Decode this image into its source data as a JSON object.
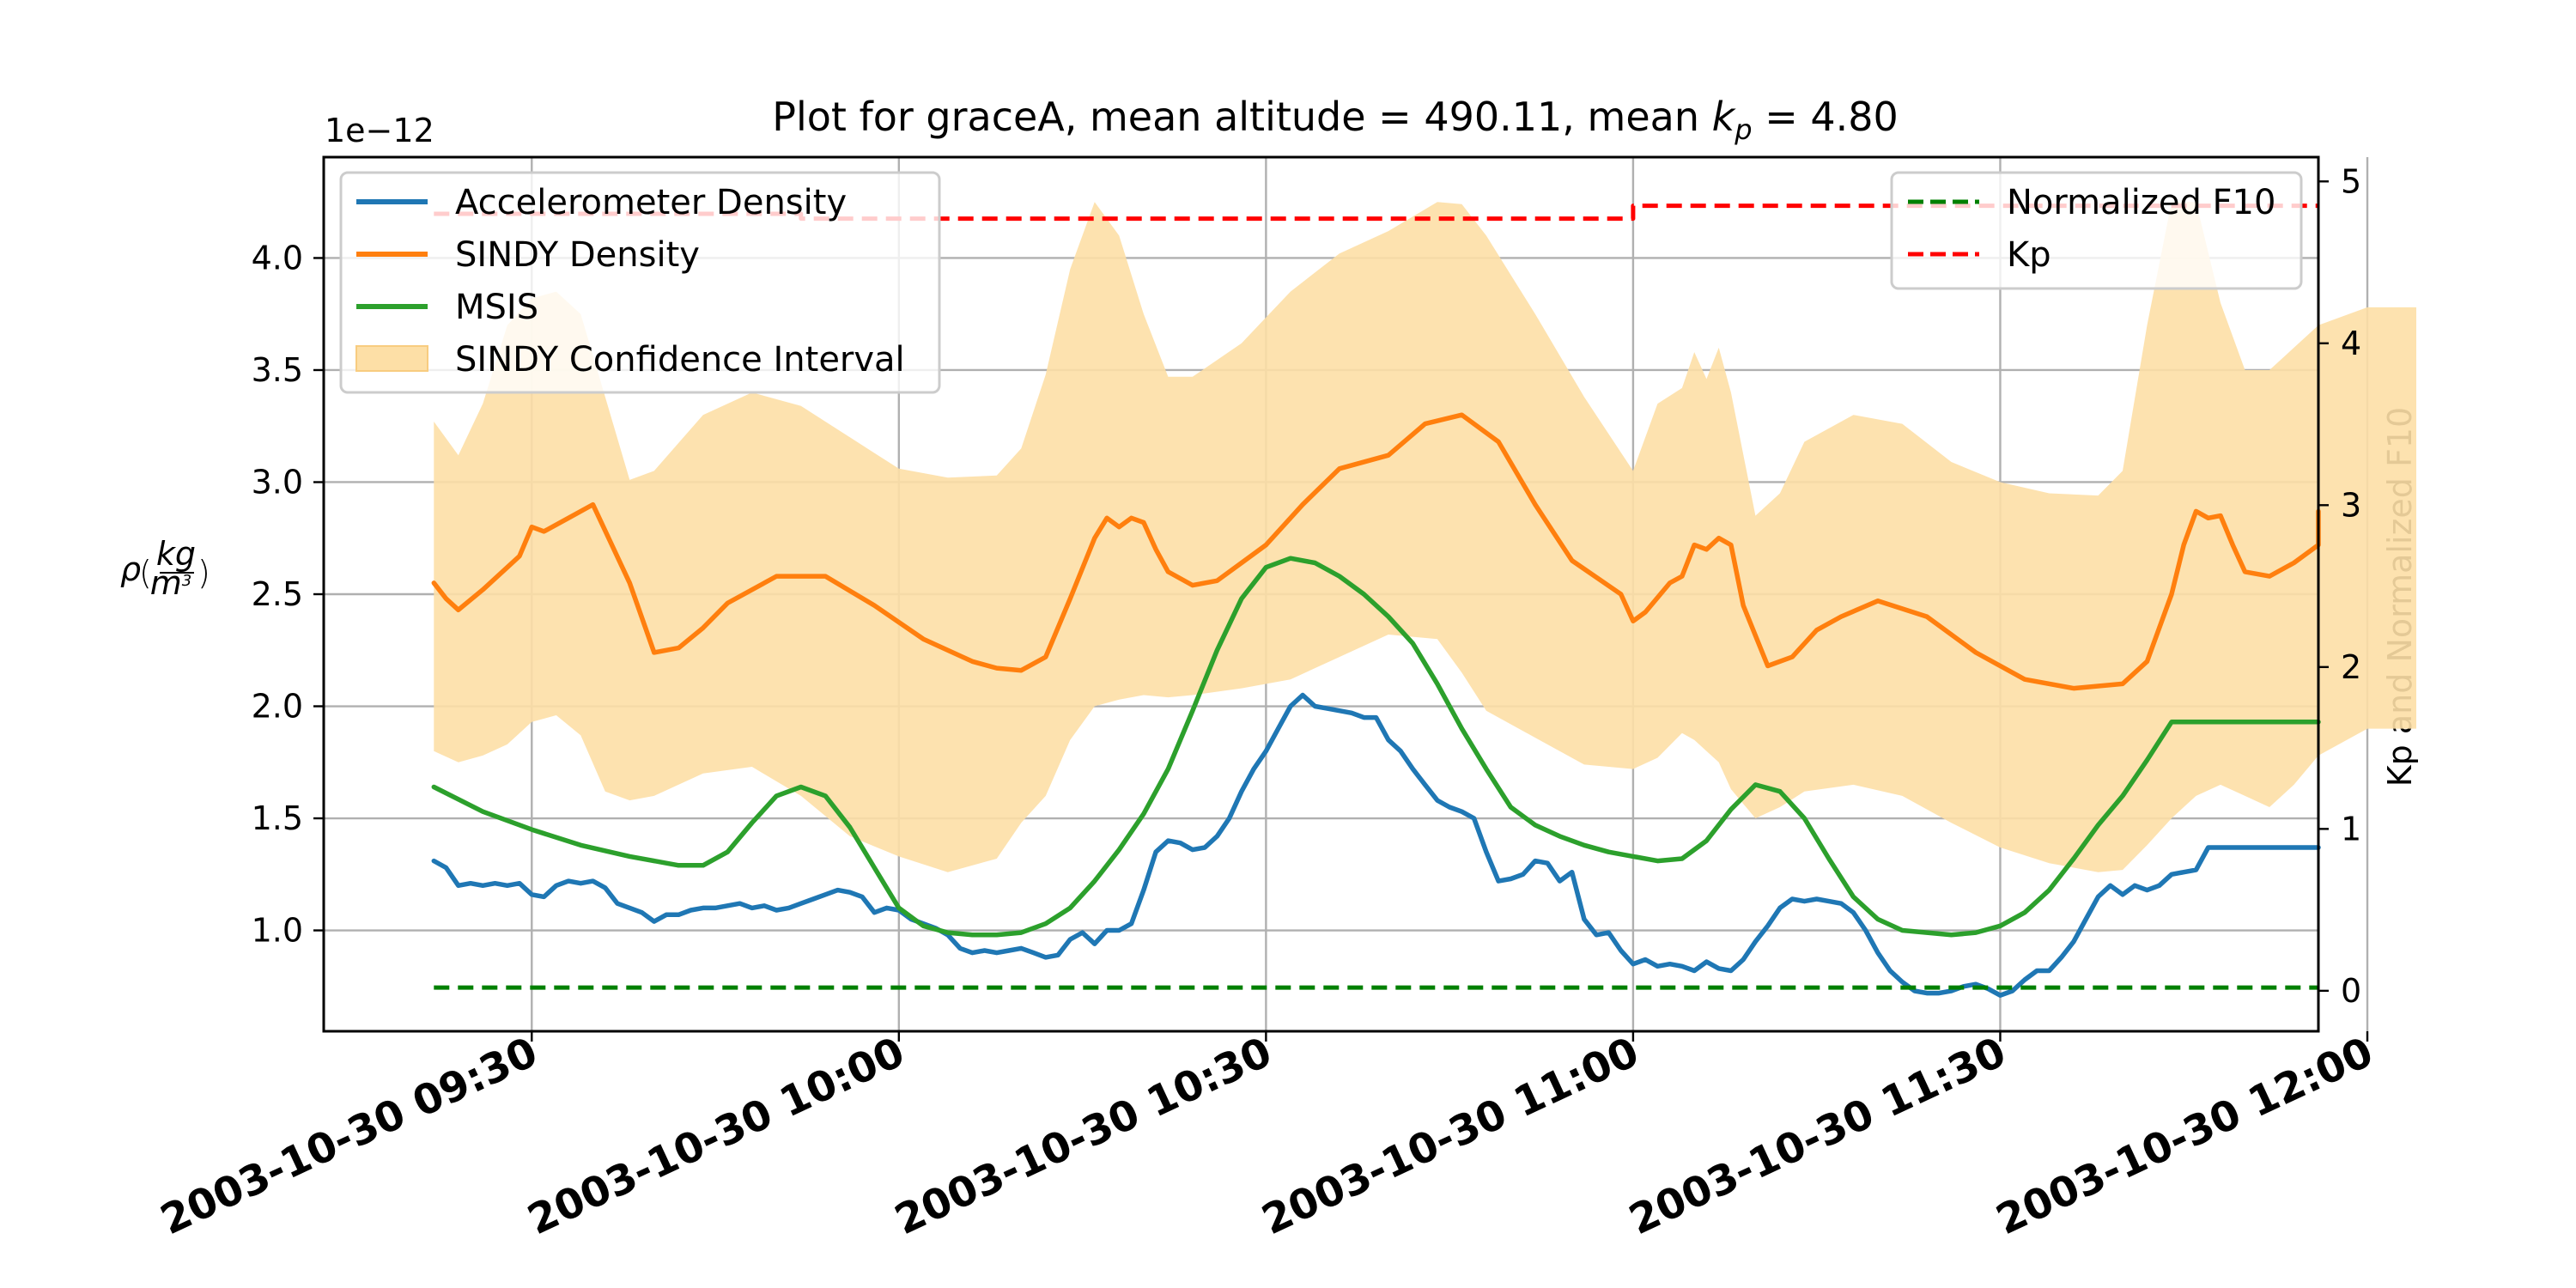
{
  "chart_data": {
    "type": "line",
    "title_prefix": "Plot for graceA, mean altitude = 490.11, mean ",
    "title_kp_base": "k",
    "title_kp_sub": "p",
    "title_suffix": " = 4.80",
    "left_axis": {
      "label_rho": "ρ",
      "label_num": "kg",
      "label_den_base": "m",
      "label_den_exp": "3",
      "offset_text": "1e−12",
      "ylim": [
        0.55,
        4.45
      ],
      "ticks": [
        1.0,
        1.5,
        2.0,
        2.5,
        3.0,
        3.5,
        4.0
      ],
      "tick_labels": [
        "1.0",
        "1.5",
        "2.0",
        "2.5",
        "3.0",
        "3.5",
        "4.0"
      ],
      "unit_scale": "1e-12"
    },
    "right_axis": {
      "label": "Kp and Normalized F10",
      "ylim": [
        -0.25,
        5.15
      ],
      "ticks": [
        0,
        1,
        2,
        3,
        4,
        5
      ],
      "tick_labels": [
        "0",
        "1",
        "2",
        "3",
        "4",
        "5"
      ]
    },
    "x_axis": {
      "unit": "minutes after 2003-10-30 09:00",
      "xlim": [
        13.0,
        176.0
      ],
      "ticks": [
        30,
        60,
        90,
        120,
        150,
        180
      ],
      "tick_labels": [
        "2003-10-30 09:30",
        "2003-10-30 10:00",
        "2003-10-30 10:30",
        "2003-10-30 11:00",
        "2003-10-30 11:30",
        "2003-10-30 12:00"
      ]
    },
    "grid": true,
    "colors": {
      "accelerometer": "#1f77b4",
      "sindy": "#ff7f0e",
      "msis": "#2ca02c",
      "confidence": "#fddfa6",
      "f10": "#008000",
      "kp": "#ff0000"
    },
    "legend_left": [
      {
        "label": "Accelerometer Density",
        "key": "accelerometer",
        "style": "line"
      },
      {
        "label": "SINDY Density",
        "key": "sindy",
        "style": "line"
      },
      {
        "label": "MSIS",
        "key": "msis",
        "style": "line"
      },
      {
        "label": "SINDY Confidence Interval",
        "key": "confidence",
        "style": "patch"
      }
    ],
    "legend_right": [
      {
        "label": "Normalized F10",
        "key": "f10",
        "style": "dashed"
      },
      {
        "label": "Kp",
        "key": "kp",
        "style": "dashed"
      }
    ],
    "series": [
      {
        "name": "Accelerometer Density",
        "axis": "left",
        "x": [
          22,
          23,
          24,
          25,
          26,
          27,
          28,
          29,
          30,
          31,
          32,
          33,
          34,
          35,
          36,
          37,
          38,
          39,
          40,
          41,
          42,
          43,
          44,
          45,
          46,
          47,
          48,
          49,
          50,
          51,
          52,
          53,
          54,
          55,
          56,
          57,
          58,
          59,
          60,
          61,
          62,
          63,
          64,
          65,
          66,
          67,
          68,
          69,
          70,
          71,
          72,
          73,
          74,
          75,
          76,
          77,
          78,
          79,
          80,
          81,
          82,
          83,
          84,
          85,
          86,
          87,
          88,
          89,
          90,
          91,
          92,
          93,
          94,
          95,
          96,
          97,
          98,
          99,
          100,
          101,
          102,
          103,
          104,
          105,
          106,
          107,
          108,
          109,
          110,
          111,
          112,
          113,
          114,
          115,
          116,
          117,
          118,
          119,
          120,
          121,
          122,
          123,
          124,
          125,
          126,
          127,
          128,
          129,
          130,
          131,
          132,
          133,
          134,
          135,
          136,
          137,
          138,
          139,
          140,
          141,
          142,
          143,
          144,
          145,
          146,
          147,
          148,
          149,
          150,
          151,
          152,
          153,
          154,
          155,
          156,
          157,
          158,
          159,
          160,
          161,
          162,
          163,
          164,
          165,
          166,
          167,
          168,
          169,
          170,
          171,
          172,
          173,
          174,
          175,
          176,
          177,
          178,
          179,
          180,
          181,
          182,
          183,
          184
        ],
        "values": [
          1.31,
          1.28,
          1.2,
          1.21,
          1.2,
          1.21,
          1.2,
          1.21,
          1.16,
          1.15,
          1.2,
          1.22,
          1.21,
          1.22,
          1.19,
          1.12,
          1.1,
          1.08,
          1.04,
          1.07,
          1.07,
          1.09,
          1.1,
          1.1,
          1.11,
          1.12,
          1.1,
          1.11,
          1.09,
          1.1,
          1.12,
          1.14,
          1.16,
          1.18,
          1.17,
          1.15,
          1.08,
          1.1,
          1.09,
          1.05,
          1.03,
          1.01,
          0.98,
          0.92,
          0.9,
          0.91,
          0.9,
          0.91,
          0.92,
          0.9,
          0.88,
          0.89,
          0.96,
          0.99,
          0.94,
          1.0,
          1.0,
          1.03,
          1.18,
          1.35,
          1.4,
          1.39,
          1.36,
          1.37,
          1.42,
          1.5,
          1.62,
          1.72,
          1.8,
          1.9,
          2.0,
          2.05,
          2.0,
          1.99,
          1.98,
          1.97,
          1.95,
          1.95,
          1.85,
          1.8,
          1.72,
          1.65,
          1.58,
          1.55,
          1.53,
          1.5,
          1.35,
          1.22,
          1.23,
          1.25,
          1.31,
          1.3,
          1.22,
          1.26,
          1.05,
          0.98,
          0.99,
          0.91,
          0.85,
          0.87,
          0.84,
          0.85,
          0.84,
          0.82,
          0.86,
          0.83,
          0.82,
          0.87,
          0.95,
          1.02,
          1.1,
          1.14,
          1.13,
          1.14,
          1.13,
          1.12,
          1.08,
          1.0,
          0.9,
          0.82,
          0.77,
          0.73,
          0.72,
          0.72,
          0.73,
          0.75,
          0.76,
          0.74,
          0.71,
          0.73,
          0.78,
          0.82,
          0.82,
          0.88,
          0.95,
          1.05,
          1.15,
          1.2,
          1.16,
          1.2,
          1.18,
          1.2,
          1.25,
          1.26,
          1.27,
          1.37,
          1.37,
          1.37,
          1.37,
          1.37,
          1.37,
          1.37,
          1.37,
          1.37,
          1.37,
          1.37,
          1.37,
          1.37,
          1.37,
          1.37,
          1.37,
          1.37,
          1.37
        ]
      },
      {
        "name": "SINDY Density",
        "axis": "left",
        "x": [
          22,
          23,
          24,
          26,
          28,
          29,
          30,
          31,
          33,
          35,
          38,
          40,
          42,
          44,
          46,
          50,
          54,
          58,
          62,
          66,
          68,
          70,
          72,
          74,
          76,
          77,
          78,
          79,
          80,
          81,
          82,
          84,
          86,
          88,
          90,
          93,
          96,
          100,
          103,
          106,
          109,
          112,
          115,
          119,
          120,
          121,
          123,
          124,
          125,
          126,
          127,
          128,
          129,
          131,
          133,
          135,
          137,
          140,
          144,
          148,
          152,
          156,
          160,
          162,
          164,
          165,
          166,
          167,
          168,
          169,
          170,
          172,
          174,
          176,
          178,
          180,
          182,
          184
        ],
        "values": [
          2.55,
          2.48,
          2.43,
          2.52,
          2.62,
          2.67,
          2.8,
          2.78,
          2.84,
          2.9,
          2.55,
          2.24,
          2.26,
          2.35,
          2.46,
          2.58,
          2.58,
          2.45,
          2.3,
          2.2,
          2.17,
          2.16,
          2.22,
          2.48,
          2.75,
          2.84,
          2.8,
          2.84,
          2.82,
          2.7,
          2.6,
          2.54,
          2.56,
          2.64,
          2.72,
          2.9,
          3.06,
          3.12,
          3.26,
          3.3,
          3.18,
          2.9,
          2.65,
          2.5,
          2.38,
          2.42,
          2.55,
          2.58,
          2.72,
          2.7,
          2.75,
          2.72,
          2.45,
          2.18,
          2.22,
          2.34,
          2.4,
          2.47,
          2.4,
          2.24,
          2.12,
          2.08,
          2.1,
          2.2,
          2.5,
          2.72,
          2.87,
          2.84,
          2.85,
          2.72,
          2.6,
          2.58,
          2.64,
          2.72,
          2.85,
          2.87,
          2.87,
          2.87
        ]
      },
      {
        "name": "MSIS",
        "axis": "left",
        "x": [
          22,
          26,
          30,
          34,
          38,
          42,
          44,
          46,
          48,
          50,
          52,
          54,
          56,
          58,
          60,
          62,
          64,
          66,
          68,
          70,
          72,
          74,
          76,
          78,
          80,
          82,
          84,
          86,
          88,
          90,
          92,
          94,
          96,
          98,
          100,
          102,
          104,
          106,
          108,
          110,
          112,
          114,
          116,
          118,
          120,
          122,
          124,
          126,
          128,
          130,
          132,
          134,
          136,
          138,
          140,
          142,
          144,
          146,
          148,
          150,
          152,
          154,
          156,
          158,
          160,
          162,
          164,
          166,
          168,
          170,
          172,
          174,
          176,
          178,
          180,
          182,
          184
        ],
        "values": [
          1.64,
          1.53,
          1.45,
          1.38,
          1.33,
          1.29,
          1.29,
          1.35,
          1.48,
          1.6,
          1.64,
          1.6,
          1.46,
          1.28,
          1.1,
          1.02,
          0.99,
          0.98,
          0.98,
          0.99,
          1.03,
          1.1,
          1.22,
          1.36,
          1.52,
          1.72,
          1.98,
          2.25,
          2.48,
          2.62,
          2.66,
          2.64,
          2.58,
          2.5,
          2.4,
          2.28,
          2.1,
          1.9,
          1.72,
          1.55,
          1.47,
          1.42,
          1.38,
          1.35,
          1.33,
          1.31,
          1.32,
          1.4,
          1.54,
          1.65,
          1.62,
          1.5,
          1.32,
          1.15,
          1.05,
          1.0,
          0.99,
          0.98,
          0.99,
          1.02,
          1.08,
          1.18,
          1.32,
          1.47,
          1.6,
          1.76,
          1.93,
          1.93,
          1.93,
          1.93,
          1.93,
          1.93,
          1.93,
          1.93,
          1.93,
          1.93,
          1.93
        ]
      },
      {
        "name": "Normalized F10",
        "axis": "right",
        "x": [
          22,
          176
        ],
        "values": [
          0.02,
          0.02
        ]
      },
      {
        "name": "Kp",
        "axis": "right",
        "step": true,
        "x": [
          22,
          52,
          52,
          120,
          120,
          176
        ],
        "values": [
          4.8,
          4.8,
          4.77,
          4.77,
          4.85,
          4.85
        ]
      }
    ],
    "confidence_interval": {
      "name": "SINDY Confidence Interval",
      "x": [
        22,
        24,
        26,
        28,
        30,
        32,
        34,
        36,
        38,
        40,
        44,
        48,
        52,
        56,
        60,
        64,
        68,
        70,
        72,
        74,
        76,
        78,
        80,
        82,
        84,
        88,
        92,
        96,
        100,
        104,
        106,
        108,
        112,
        116,
        120,
        122,
        124,
        125,
        126,
        127,
        128,
        130,
        132,
        134,
        138,
        142,
        146,
        150,
        154,
        158,
        160,
        162,
        164,
        166,
        168,
        170,
        172,
        174,
        176,
        180,
        184
      ],
      "upper": [
        3.27,
        3.12,
        3.35,
        3.7,
        3.82,
        3.85,
        3.75,
        3.38,
        3.01,
        3.05,
        3.3,
        3.4,
        3.34,
        3.2,
        3.06,
        3.02,
        3.03,
        3.15,
        3.48,
        3.95,
        4.25,
        4.1,
        3.75,
        3.47,
        3.47,
        3.62,
        3.85,
        4.02,
        4.12,
        4.25,
        4.24,
        4.1,
        3.75,
        3.38,
        3.05,
        3.35,
        3.42,
        3.58,
        3.46,
        3.6,
        3.4,
        2.85,
        2.95,
        3.18,
        3.3,
        3.26,
        3.09,
        3.0,
        2.95,
        2.94,
        3.05,
        3.7,
        4.25,
        4.25,
        3.8,
        3.5,
        3.5,
        3.6,
        3.7,
        3.78,
        3.78
      ],
      "lower": [
        1.8,
        1.75,
        1.78,
        1.83,
        1.93,
        1.96,
        1.87,
        1.62,
        1.58,
        1.6,
        1.7,
        1.73,
        1.6,
        1.42,
        1.33,
        1.26,
        1.32,
        1.48,
        1.6,
        1.85,
        2.0,
        2.03,
        2.05,
        2.04,
        2.05,
        2.08,
        2.12,
        2.22,
        2.32,
        2.3,
        2.15,
        1.98,
        1.86,
        1.74,
        1.72,
        1.77,
        1.88,
        1.85,
        1.8,
        1.75,
        1.63,
        1.5,
        1.55,
        1.62,
        1.65,
        1.6,
        1.48,
        1.37,
        1.3,
        1.26,
        1.27,
        1.38,
        1.5,
        1.6,
        1.65,
        1.6,
        1.55,
        1.65,
        1.78,
        1.9,
        1.9
      ]
    }
  }
}
